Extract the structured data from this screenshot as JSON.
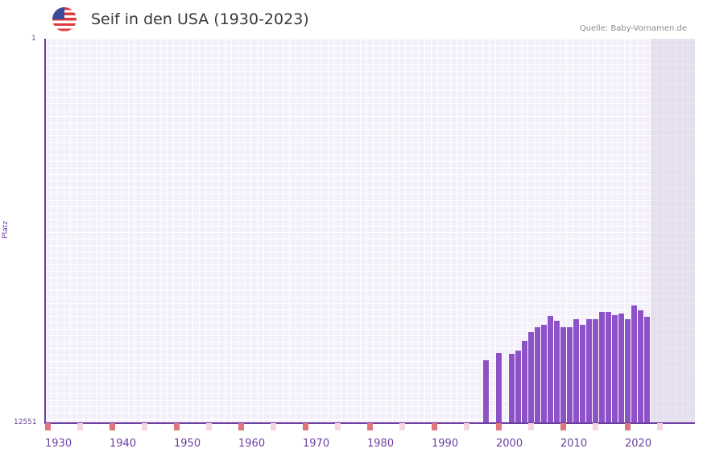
{
  "header": {
    "title": "Seif in den USA (1930-2023)",
    "source": "Quelle: Baby-Vornamen.de",
    "flag_icon": "usa-flag-icon"
  },
  "axis": {
    "y_title": "Platz",
    "y_top": "1",
    "y_bottom": "12551",
    "x_ticks": [
      "1930",
      "1940",
      "1950",
      "1960",
      "1970",
      "1980",
      "1990",
      "2000",
      "2010",
      "2020"
    ]
  },
  "colors": {
    "bar": "#8e52c8",
    "axis": "#6b3fa0",
    "decade_marker": "#e2747d",
    "half_decade_marker": "#f6d6df",
    "plot_bg": "#f3f0fb"
  },
  "chart_data": {
    "type": "bar",
    "title": "Seif in den USA (1930-2023)",
    "xlabel": "",
    "ylabel": "Platz",
    "ylim": [
      12551,
      1
    ],
    "y_inverted": true,
    "x": [
      1998,
      2000,
      2002,
      2003,
      2004,
      2005,
      2006,
      2007,
      2008,
      2009,
      2010,
      2011,
      2012,
      2013,
      2014,
      2015,
      2016,
      2017,
      2018,
      2019,
      2020,
      2021,
      2022,
      2023
    ],
    "values": [
      10490,
      10250,
      10280,
      10170,
      9860,
      9570,
      9410,
      9330,
      9040,
      9200,
      9410,
      9410,
      9150,
      9330,
      9170,
      9150,
      8910,
      8910,
      9020,
      8960,
      9170,
      8720,
      8880,
      9070
    ],
    "x_range": [
      1930,
      2029
    ],
    "grid": true,
    "legend": null
  }
}
